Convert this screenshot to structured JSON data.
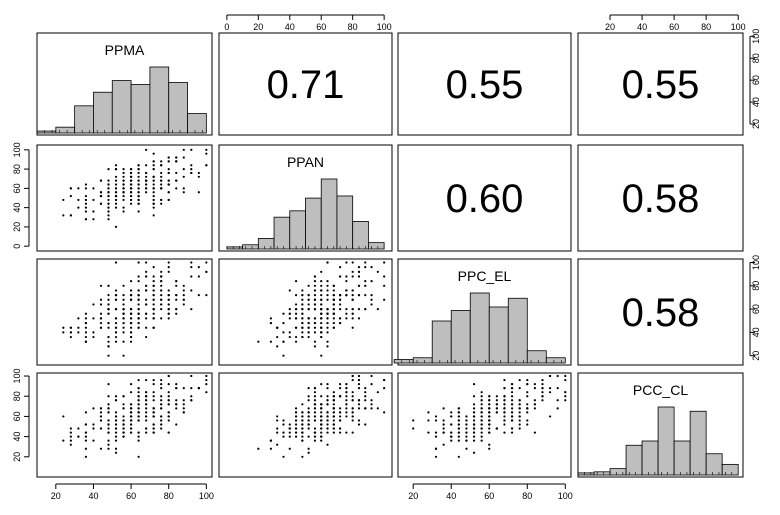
{
  "chart_data": {
    "type": "scatter",
    "variables": [
      "PPMA",
      "PPAN",
      "PPC_EL",
      "PCC_CL"
    ],
    "correlations": {
      "PPMA_PPAN": "0.71",
      "PPMA_PPC_EL": "0.55",
      "PPMA_PCC_CL": "0.55",
      "PPAN_PPC_EL": "0.60",
      "PPAN_PCC_CL": "0.58",
      "PPC_EL_PCC_CL": "0.58"
    },
    "axis_ticks": {
      "left": [
        0,
        20,
        40,
        60,
        80,
        100
      ],
      "left_row4": [
        20,
        40,
        60,
        80,
        100
      ],
      "right": [
        20,
        40,
        60,
        80,
        100
      ],
      "top": [
        0,
        20,
        40,
        60,
        80,
        100
      ],
      "top_col4": [
        20,
        40,
        60,
        80,
        100
      ],
      "bottom": [
        20,
        40,
        60,
        80,
        100
      ]
    },
    "axis_ranges": {
      "PPMA": [
        10,
        103
      ],
      "PPAN": [
        -5,
        105
      ],
      "PPC_EL": [
        12,
        103
      ],
      "PCC_CL": [
        0,
        103
      ]
    },
    "histograms": {
      "PPMA": {
        "breaks": [
          10,
          20,
          30,
          40,
          50,
          60,
          70,
          80,
          90,
          100
        ],
        "counts": [
          2,
          6,
          28,
          42,
          54,
          50,
          68,
          52,
          20
        ]
      },
      "PPAN": {
        "breaks": [
          0,
          10,
          20,
          30,
          40,
          50,
          60,
          70,
          80,
          90,
          100
        ],
        "counts": [
          2,
          4,
          10,
          30,
          36,
          48,
          66,
          50,
          26,
          6
        ]
      },
      "PPC_EL": {
        "breaks": [
          10,
          20,
          30,
          40,
          50,
          60,
          70,
          80,
          90,
          100
        ],
        "counts": [
          4,
          6,
          48,
          60,
          80,
          64,
          74,
          14,
          6
        ]
      },
      "PCC_CL": {
        "breaks": [
          0,
          10,
          20,
          30,
          40,
          50,
          60,
          70,
          80,
          90,
          100
        ],
        "counts": [
          2,
          3,
          6,
          28,
          32,
          64,
          32,
          60,
          20,
          10
        ]
      }
    }
  }
}
